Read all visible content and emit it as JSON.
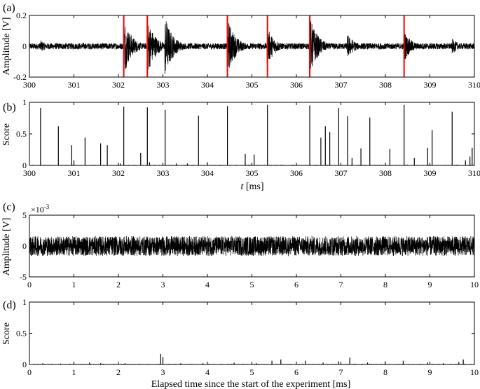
{
  "chart_data": [
    {
      "panel_label": "(a)",
      "type": "line",
      "ylabel": "Amplitude [V]",
      "xlim": [
        300,
        310
      ],
      "ylim": [
        -0.2,
        0.2
      ],
      "x_ticks": [
        "300",
        "301",
        "302",
        "303",
        "304",
        "305",
        "306",
        "307",
        "308",
        "309",
        "310"
      ],
      "y_ticks": [
        "-0.2",
        "0",
        "0.2"
      ],
      "series": [
        {
          "line_color": "#000000",
          "baseline_amplitude": 0.02,
          "bursts": [
            {
              "x": 300.25,
              "amplitude": 0.04
            },
            {
              "x": 301.2,
              "amplitude": 0.025
            },
            {
              "x": 302.12,
              "amplitude": 0.19
            },
            {
              "x": 302.65,
              "amplitude": 0.19
            },
            {
              "x": 303.05,
              "amplitude": 0.2
            },
            {
              "x": 304.45,
              "amplitude": 0.19
            },
            {
              "x": 305.35,
              "amplitude": 0.12
            },
            {
              "x": 306.3,
              "amplitude": 0.2
            },
            {
              "x": 307.15,
              "amplitude": 0.08
            },
            {
              "x": 308.42,
              "amplitude": 0.1
            },
            {
              "x": 309.5,
              "amplitude": 0.05
            }
          ]
        }
      ],
      "markers": {
        "color": "#ff0000",
        "x": [
          302.12,
          302.65,
          304.45,
          305.35,
          306.3,
          308.42
        ]
      }
    },
    {
      "panel_label": "(b)",
      "type": "bar",
      "ylabel": "Score",
      "xlabel_italic": "t",
      "xlabel_rest": " [ms]",
      "xlim": [
        300,
        310
      ],
      "ylim": [
        0,
        1
      ],
      "x_ticks": [
        "300",
        "301",
        "302",
        "303",
        "304",
        "305",
        "306",
        "307",
        "308",
        "309",
        "310"
      ],
      "y_ticks": [
        "0",
        "0.5",
        "1"
      ],
      "x": [
        300.25,
        300.65,
        300.95,
        301.0,
        301.25,
        301.6,
        301.75,
        302.05,
        302.12,
        302.5,
        302.65,
        302.7,
        303.05,
        303.3,
        303.55,
        303.8,
        304.0,
        304.45,
        304.85,
        305.05,
        305.35,
        306.3,
        306.55,
        306.65,
        306.75,
        306.95,
        307.15,
        307.25,
        307.45,
        307.65,
        308.1,
        308.42,
        308.65,
        308.95,
        309.05,
        309.5,
        309.8,
        309.9,
        309.95
      ],
      "values": [
        0.91,
        0.62,
        0.32,
        0.08,
        0.44,
        0.35,
        0.32,
        0.03,
        0.93,
        0.2,
        0.92,
        0.05,
        0.88,
        0.03,
        0.03,
        0.79,
        0.05,
        0.94,
        0.18,
        0.17,
        0.96,
        0.95,
        0.44,
        0.62,
        0.53,
        0.91,
        0.78,
        0.12,
        0.27,
        0.76,
        0.26,
        0.96,
        0.12,
        0.28,
        0.56,
        0.85,
        0.08,
        0.14,
        0.28
      ]
    },
    {
      "panel_label": "(c)",
      "type": "line",
      "ylabel": "Amplitude [V]",
      "y_multiplier": "×10",
      "y_multiplier_exp": "-3",
      "xlim": [
        0,
        10
      ],
      "ylim": [
        -5,
        5
      ],
      "x_ticks": [
        "0",
        "1",
        "2",
        "3",
        "4",
        "5",
        "6",
        "7",
        "8",
        "9",
        "10"
      ],
      "y_ticks": [
        "-5",
        "0",
        "5"
      ],
      "series": [
        {
          "line_color": "#000000",
          "noise_amplitude": 1.6
        }
      ]
    },
    {
      "panel_label": "(d)",
      "type": "bar",
      "ylabel": "Score",
      "xlabel": "Elapsed time since the start of the experiment [ms]",
      "xlim": [
        0,
        10
      ],
      "ylim": [
        0,
        1
      ],
      "x_ticks": [
        "0",
        "1",
        "2",
        "3",
        "4",
        "5",
        "6",
        "7",
        "8",
        "9",
        "10"
      ],
      "y_ticks": [
        "0",
        "0.5",
        "1"
      ],
      "x": [
        0.3,
        0.7,
        1.0,
        1.35,
        1.6,
        2.15,
        2.95,
        3.0,
        3.4,
        3.9,
        4.6,
        5.1,
        5.45,
        5.65,
        6.2,
        6.6,
        6.95,
        7.2,
        7.6,
        8.0,
        8.4,
        8.95,
        9.3,
        9.65,
        9.75
      ],
      "values": [
        0.02,
        0.015,
        0.02,
        0.03,
        0.02,
        0.02,
        0.17,
        0.12,
        0.02,
        0.02,
        0.03,
        0.02,
        0.06,
        0.08,
        0.06,
        0.03,
        0.05,
        0.11,
        0.03,
        0.05,
        0.06,
        0.03,
        0.02,
        0.04,
        0.08
      ]
    }
  ]
}
